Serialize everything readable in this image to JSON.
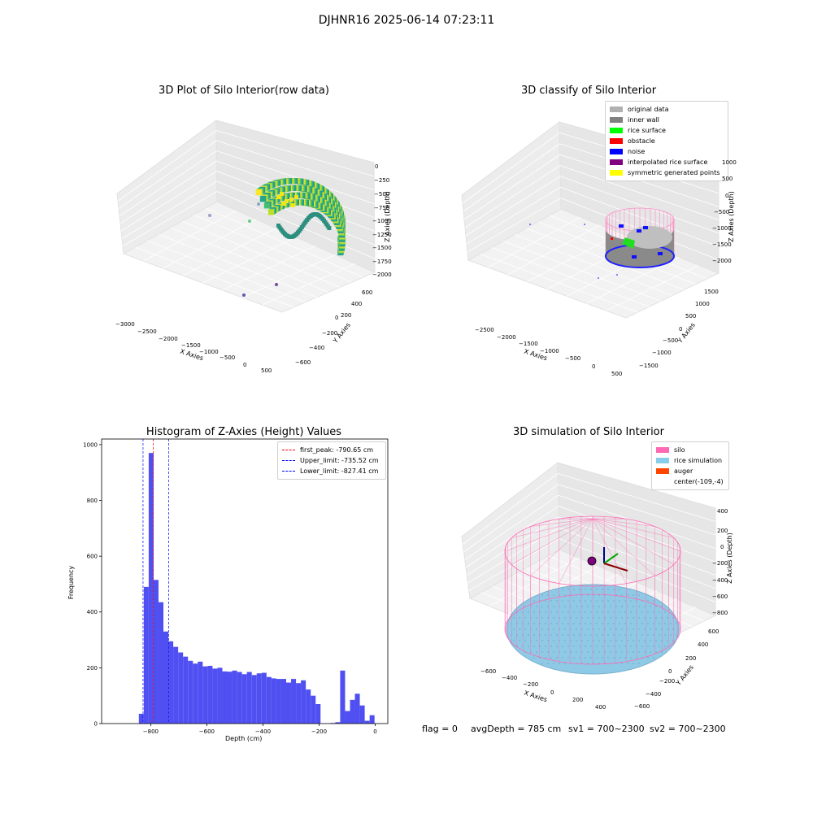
{
  "figure": {
    "title": "DJHNR16 2025-06-14 07:23:11"
  },
  "chart_data": [
    {
      "type": "scatter3d",
      "title": "3D Plot of Silo Interior(row data)",
      "xlabel": "X Axies",
      "ylabel": "Y Axies",
      "zlabel": "Z Axies (Depth)",
      "x_ticks": [
        "−3000",
        "−2500",
        "−2000",
        "−1500",
        "−1000",
        "−500",
        "0",
        "500"
      ],
      "y_ticks": [
        "−600",
        "−400",
        "−200",
        "0",
        "200",
        "400",
        "600"
      ],
      "z_ticks": [
        "0",
        "−250",
        "−500",
        "−750",
        "−1000",
        "−1250",
        "−1500",
        "−1750",
        "−2000"
      ],
      "colormap": "viridis",
      "grid": true
    },
    {
      "type": "scatter3d",
      "title": "3D classify of Silo Interior",
      "xlabel": "X Axies",
      "ylabel": "Y Axies",
      "zlabel": "Z Axies (Depth)",
      "x_ticks": [
        "−2500",
        "−2000",
        "−1500",
        "−1000",
        "−500",
        "0",
        "500"
      ],
      "y_ticks": [
        "−1500",
        "−1000",
        "−500",
        "0",
        "500",
        "1000",
        "1500"
      ],
      "z_ticks": [
        "1000",
        "500",
        "0",
        "−500",
        "−1000",
        "−1500",
        "−2000"
      ],
      "legend": [
        {
          "label": "original data",
          "color": "#b0b0b0"
        },
        {
          "label": "inner wall",
          "color": "#808080"
        },
        {
          "label": "rice surface",
          "color": "#00ff00"
        },
        {
          "label": "obstacle",
          "color": "#ff0000"
        },
        {
          "label": "noise",
          "color": "#0000ff"
        },
        {
          "label": "interpolated rice surface",
          "color": "#800080"
        },
        {
          "label": "symmetric generated points",
          "color": "#ffff00"
        }
      ],
      "legend_position": "top-right",
      "grid": true
    },
    {
      "type": "bar",
      "title": "Histogram of Z-Axies (Height) Values",
      "xlabel": "Depth (cm)",
      "ylabel": "Frequency",
      "xlim": [
        -975,
        45
      ],
      "ylim": [
        0,
        1020
      ],
      "x_ticks": [
        -800,
        -600,
        -400,
        -200,
        0
      ],
      "x_tick_labels": [
        "−800",
        "−600",
        "−400",
        "−200",
        "0"
      ],
      "y_ticks": [
        0,
        200,
        400,
        600,
        800,
        1000
      ],
      "bin_width": 17.5,
      "bins": [
        {
          "x": -833.5,
          "value": 35
        },
        {
          "x": -816.0,
          "value": 490
        },
        {
          "x": -798.5,
          "value": 970
        },
        {
          "x": -781.0,
          "value": 515
        },
        {
          "x": -763.5,
          "value": 435
        },
        {
          "x": -746.0,
          "value": 330
        },
        {
          "x": -728.5,
          "value": 295
        },
        {
          "x": -711.0,
          "value": 275
        },
        {
          "x": -693.5,
          "value": 255
        },
        {
          "x": -676.0,
          "value": 240
        },
        {
          "x": -658.5,
          "value": 225
        },
        {
          "x": -641.0,
          "value": 215
        },
        {
          "x": -623.5,
          "value": 222
        },
        {
          "x": -606.0,
          "value": 205
        },
        {
          "x": -588.5,
          "value": 207
        },
        {
          "x": -571.0,
          "value": 197
        },
        {
          "x": -553.5,
          "value": 200
        },
        {
          "x": -536.0,
          "value": 187
        },
        {
          "x": -518.5,
          "value": 186
        },
        {
          "x": -501.0,
          "value": 190
        },
        {
          "x": -483.5,
          "value": 185
        },
        {
          "x": -466.0,
          "value": 177
        },
        {
          "x": -448.5,
          "value": 185
        },
        {
          "x": -431.0,
          "value": 174
        },
        {
          "x": -413.5,
          "value": 180
        },
        {
          "x": -396.0,
          "value": 182
        },
        {
          "x": -378.5,
          "value": 167
        },
        {
          "x": -361.0,
          "value": 162
        },
        {
          "x": -343.5,
          "value": 160
        },
        {
          "x": -326.0,
          "value": 160
        },
        {
          "x": -308.5,
          "value": 147
        },
        {
          "x": -291.0,
          "value": 160
        },
        {
          "x": -273.5,
          "value": 145
        },
        {
          "x": -256.0,
          "value": 155
        },
        {
          "x": -238.5,
          "value": 122
        },
        {
          "x": -221.0,
          "value": 100
        },
        {
          "x": -203.5,
          "value": 70
        },
        {
          "x": -151.0,
          "value": 2
        },
        {
          "x": -133.5,
          "value": 5
        },
        {
          "x": -116.0,
          "value": 190
        },
        {
          "x": -98.5,
          "value": 45
        },
        {
          "x": -81.0,
          "value": 85
        },
        {
          "x": -63.5,
          "value": 107
        },
        {
          "x": -46.0,
          "value": 65
        },
        {
          "x": -28.5,
          "value": 10
        },
        {
          "x": -11.0,
          "value": 30
        }
      ],
      "bar_color": "#5050f2",
      "vlines": [
        {
          "label": "first_peak: -790.65 cm",
          "x": -790.65,
          "color": "#ff0000"
        },
        {
          "label": "Upper_limit: -735.52 cm",
          "x": -735.52,
          "color": "#0000ff"
        },
        {
          "label": "Lower_limit: -827.41 cm",
          "x": -827.41,
          "color": "#0000ff"
        }
      ],
      "legend_position": "top-right"
    },
    {
      "type": "surface3d",
      "title": "3D simulation of Silo Interior",
      "xlabel": "X Axies",
      "ylabel": "Y Axies",
      "zlabel": "Z Axies (Depth)",
      "x_ticks": [
        "−600",
        "−400",
        "−200",
        "0",
        "200",
        "400"
      ],
      "y_ticks": [
        "−600",
        "−400",
        "−200",
        "0",
        "200",
        "400",
        "600"
      ],
      "z_ticks": [
        "400",
        "200",
        "0",
        "−200",
        "−400",
        "−600",
        "−800"
      ],
      "legend": [
        {
          "label": "silo",
          "color": "#ff69b4"
        },
        {
          "label": "rice simulation",
          "color": "#87ceeb"
        },
        {
          "label": "auger",
          "color": "#ff4500"
        },
        {
          "label": "center(-109,-4)",
          "color": ""
        }
      ],
      "legend_position": "top-right"
    }
  ],
  "status": {
    "flag": "flag = 0",
    "avg_depth": "avgDepth = 785 cm",
    "sv1": "sv1 = 700~2300",
    "sv2": "sv2 = 700~2300"
  }
}
